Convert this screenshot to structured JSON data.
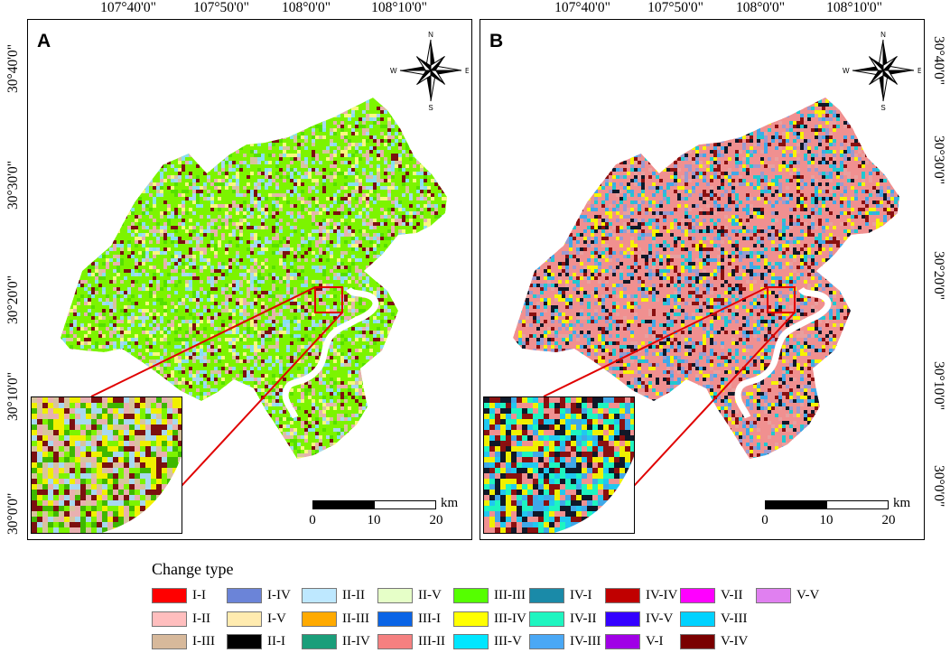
{
  "longitude_labels": [
    "107°40'0\"",
    "107°50'0\"",
    "108°0'0\"",
    "108°10'0\""
  ],
  "latitude_labels": [
    "30°40'0\"",
    "30°30'0\"",
    "30°20'0\"",
    "30°10'0\"",
    "30°0'0\""
  ],
  "panels": [
    {
      "letter": "A",
      "palette": [
        "#7cf400",
        "#55e000",
        "#e8b0b0",
        "#a8d8f0",
        "#f8f880",
        "#7b1010",
        "#d7c49e",
        "#88e0f0"
      ]
    },
    {
      "letter": "B",
      "palette": [
        "#f09090",
        "#e8a0a0",
        "#101828",
        "#40a8e8",
        "#20c8d0",
        "#8a1010",
        "#f8f400",
        "#9a9ad0"
      ]
    }
  ],
  "compass": {
    "north": "N",
    "south": "S",
    "east": "E",
    "west": "W"
  },
  "scale_bar": {
    "ticks": [
      "0",
      "10",
      "20"
    ],
    "unit": "km"
  },
  "legend": {
    "title": "Change type",
    "items": [
      {
        "label": "I-I",
        "color": "#ff0000"
      },
      {
        "label": "I-II",
        "color": "#ffbebe"
      },
      {
        "label": "I-III",
        "color": "#d7b99b"
      },
      {
        "label": "I-IV",
        "color": "#6b84d8"
      },
      {
        "label": "I-V",
        "color": "#ffebaf"
      },
      {
        "label": "II-I",
        "color": "#000000"
      },
      {
        "label": "II-II",
        "color": "#bee8ff"
      },
      {
        "label": "II-III",
        "color": "#ffaa00"
      },
      {
        "label": "II-IV",
        "color": "#1a9e7a"
      },
      {
        "label": "II-V",
        "color": "#e6ffc8"
      },
      {
        "label": "III-I",
        "color": "#0a64e6"
      },
      {
        "label": "III-II",
        "color": "#f58080"
      },
      {
        "label": "III-III",
        "color": "#55ff00"
      },
      {
        "label": "III-IV",
        "color": "#ffff00"
      },
      {
        "label": "III-V",
        "color": "#00e6ff"
      },
      {
        "label": "IV-I",
        "color": "#1a8aa8"
      },
      {
        "label": "IV-II",
        "color": "#1ef5c0"
      },
      {
        "label": "IV-III",
        "color": "#4aa8f5"
      },
      {
        "label": "IV-IV",
        "color": "#c00000"
      },
      {
        "label": "IV-V",
        "color": "#3300ff"
      },
      {
        "label": "V-I",
        "color": "#a000e6"
      },
      {
        "label": "V-II",
        "color": "#ff00ff"
      },
      {
        "label": "V-III",
        "color": "#00d2ff"
      },
      {
        "label": "V-IV",
        "color": "#7a0000"
      },
      {
        "label": "V-V",
        "color": "#e080f0"
      }
    ]
  }
}
